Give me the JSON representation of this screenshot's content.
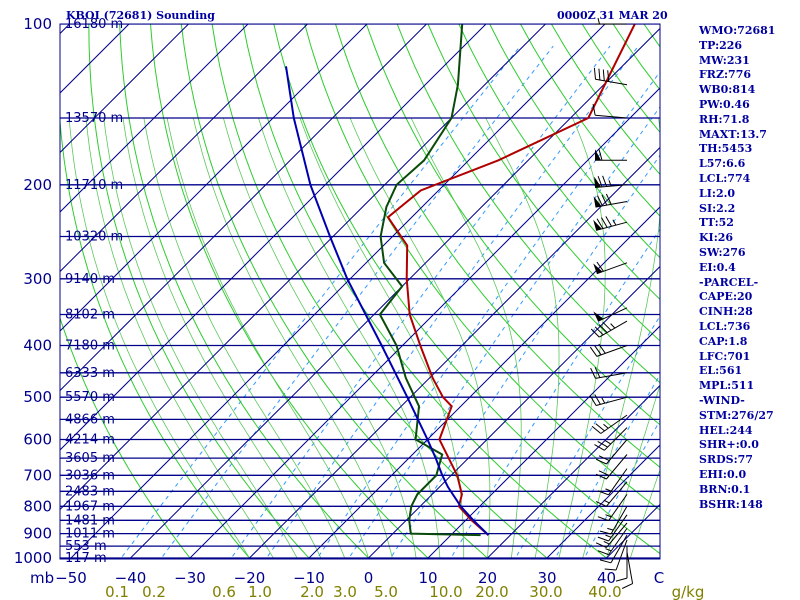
{
  "header": {
    "station": "KBOI (72681) Sounding",
    "time": "0000Z 31 MAR 20"
  },
  "indices": [
    "WMO:72681",
    "TP:226",
    "MW:231",
    "FRZ:776",
    "WB0:814",
    "PW:0.46",
    "RH:71.8",
    "MAXT:13.7",
    "TH:5453",
    "L57:6.6",
    "LCL:774",
    "LI:2.0",
    "SI:2.2",
    "TT:52",
    "KI:26",
    "SW:276",
    "EI:0.4",
    "-PARCEL-",
    "CAPE:20",
    "CINH:28",
    "LCL:736",
    "CAP:1.8",
    "LFC:701",
    "EL:561",
    "MPL:511",
    "-WIND-",
    "STM:276/27",
    "HEL:244",
    "SHR+:0.0",
    "SRDS:77",
    "EHI:0.0",
    "BRN:0.1",
    "BSHR:148"
  ],
  "colors": {
    "isobar": "#00008b",
    "isotherm": "#00008b",
    "dry_adiabat": "#2ecc2e",
    "moist_adiabat": "#5cc85c",
    "mixing_ratio": "#3399ff",
    "temperature": "#b00000",
    "dewpoint": "#0a4a0a",
    "parcel": "#0000b0",
    "wind_barb": "#000000",
    "text": "#0000a0",
    "axis_label": "#808000"
  },
  "chart_data": {
    "type": "line",
    "title": "KBOI (72681) Sounding",
    "pressure_unit": "mb",
    "pressure_levels": [
      100,
      200,
      300,
      400,
      500,
      600,
      700,
      800,
      900,
      1000
    ],
    "temperature_ticks": [
      -50,
      -40,
      -30,
      -20,
      -10,
      0,
      10,
      20,
      30,
      40
    ],
    "temperature_end_label": "C",
    "mixing_ratio_ticks": [
      "0.1",
      "0.2",
      "0.6",
      "1.0",
      "2.0",
      "3.0",
      "5.0",
      "10.0",
      "20.0",
      "30.0",
      "40.0"
    ],
    "mixing_ratio_unit": "g/kg",
    "height_labels": [
      {
        "p": 100,
        "h": "16180 m"
      },
      {
        "p": 150,
        "h": "13570 m"
      },
      {
        "p": 200,
        "h": "11710 m"
      },
      {
        "p": 250,
        "h": "10320 m"
      },
      {
        "p": 300,
        "h": "9140 m"
      },
      {
        "p": 350,
        "h": "8102 m"
      },
      {
        "p": 400,
        "h": "7180 m"
      },
      {
        "p": 450,
        "h": "6333 m"
      },
      {
        "p": 500,
        "h": "5570 m"
      },
      {
        "p": 550,
        "h": "4866 m"
      },
      {
        "p": 600,
        "h": "4214 m"
      },
      {
        "p": 650,
        "h": "3605 m"
      },
      {
        "p": 700,
        "h": "3036 m"
      },
      {
        "p": 750,
        "h": "2483 m"
      },
      {
        "p": 800,
        "h": "1967 m"
      },
      {
        "p": 850,
        "h": "1481 m"
      },
      {
        "p": 900,
        "h": "1011 m"
      },
      {
        "p": 950,
        "h": "553 m"
      },
      {
        "p": 1000,
        "h": "117 m"
      }
    ],
    "series": [
      {
        "name": "Temperature",
        "points": [
          [
            906,
            16.3
          ],
          [
            850,
            11.0
          ],
          [
            800,
            6.5
          ],
          [
            760,
            5.0
          ],
          [
            700,
            1.0
          ],
          [
            600,
            -8.0
          ],
          [
            520,
            -11.5
          ],
          [
            500,
            -14.5
          ],
          [
            460,
            -19.5
          ],
          [
            400,
            -27.0
          ],
          [
            350,
            -34.0
          ],
          [
            300,
            -40.5
          ],
          [
            260,
            -46.0
          ],
          [
            230,
            -54.0
          ],
          [
            205,
            -53.0
          ],
          [
            180,
            -45.0
          ],
          [
            150,
            -37.0
          ],
          [
            100,
            -45.0
          ]
        ]
      },
      {
        "name": "Dewpoint",
        "points": [
          [
            906,
            15.0
          ],
          [
            900,
            3.0
          ],
          [
            850,
            0.5
          ],
          [
            800,
            -1.5
          ],
          [
            760,
            -2.5
          ],
          [
            700,
            -2.5
          ],
          [
            640,
            -5.0
          ],
          [
            600,
            -12.0
          ],
          [
            520,
            -17.0
          ],
          [
            460,
            -24.0
          ],
          [
            400,
            -31.0
          ],
          [
            350,
            -39.0
          ],
          [
            310,
            -40.0
          ],
          [
            280,
            -47.0
          ],
          [
            250,
            -52.0
          ],
          [
            220,
            -56.0
          ],
          [
            200,
            -58.0
          ],
          [
            180,
            -57.5
          ],
          [
            150,
            -60.0
          ],
          [
            130,
            -64.5
          ],
          [
            100,
            -74.0
          ]
        ]
      },
      {
        "name": "Parcel",
        "points": [
          [
            906,
            16.3
          ],
          [
            850,
            11.3
          ],
          [
            800,
            6.8
          ],
          [
            736,
            1.4
          ],
          [
            700,
            -1.5
          ],
          [
            650,
            -5.5
          ],
          [
            600,
            -10.0
          ],
          [
            500,
            -20.5
          ],
          [
            400,
            -33.5
          ],
          [
            300,
            -50.5
          ],
          [
            250,
            -60.5
          ],
          [
            200,
            -72.5
          ],
          [
            150,
            -86.5
          ],
          [
            120,
            -96.5
          ]
        ]
      }
    ],
    "wind_barbs": [
      {
        "p": 100,
        "dir": 270,
        "spd": 5
      },
      {
        "p": 130,
        "dir": 280,
        "spd": 40
      },
      {
        "p": 150,
        "dir": 275,
        "spd": 10
      },
      {
        "p": 180,
        "dir": 270,
        "spd": 60
      },
      {
        "p": 200,
        "dir": 265,
        "spd": 75
      },
      {
        "p": 215,
        "dir": 260,
        "spd": 80
      },
      {
        "p": 235,
        "dir": 255,
        "spd": 85
      },
      {
        "p": 280,
        "dir": 250,
        "spd": 60
      },
      {
        "p": 340,
        "dir": 245,
        "spd": 50
      },
      {
        "p": 360,
        "dir": 240,
        "spd": 45
      },
      {
        "p": 400,
        "dir": 250,
        "spd": 30
      },
      {
        "p": 450,
        "dir": 260,
        "spd": 20
      },
      {
        "p": 500,
        "dir": 255,
        "spd": 25
      },
      {
        "p": 540,
        "dir": 235,
        "spd": 25
      },
      {
        "p": 570,
        "dir": 225,
        "spd": 25
      },
      {
        "p": 600,
        "dir": 220,
        "spd": 20
      },
      {
        "p": 640,
        "dir": 220,
        "spd": 20
      },
      {
        "p": 680,
        "dir": 215,
        "spd": 15
      },
      {
        "p": 720,
        "dir": 220,
        "spd": 15
      },
      {
        "p": 760,
        "dir": 215,
        "spd": 15
      },
      {
        "p": 800,
        "dir": 210,
        "spd": 15
      },
      {
        "p": 830,
        "dir": 215,
        "spd": 15
      },
      {
        "p": 860,
        "dir": 220,
        "spd": 15
      },
      {
        "p": 880,
        "dir": 215,
        "spd": 15
      },
      {
        "p": 906,
        "dir": 210,
        "spd": 10
      },
      {
        "p": 925,
        "dir": 200,
        "spd": 10
      },
      {
        "p": 950,
        "dir": 180,
        "spd": 10
      },
      {
        "p": 975,
        "dir": 170,
        "spd": 10
      }
    ]
  }
}
